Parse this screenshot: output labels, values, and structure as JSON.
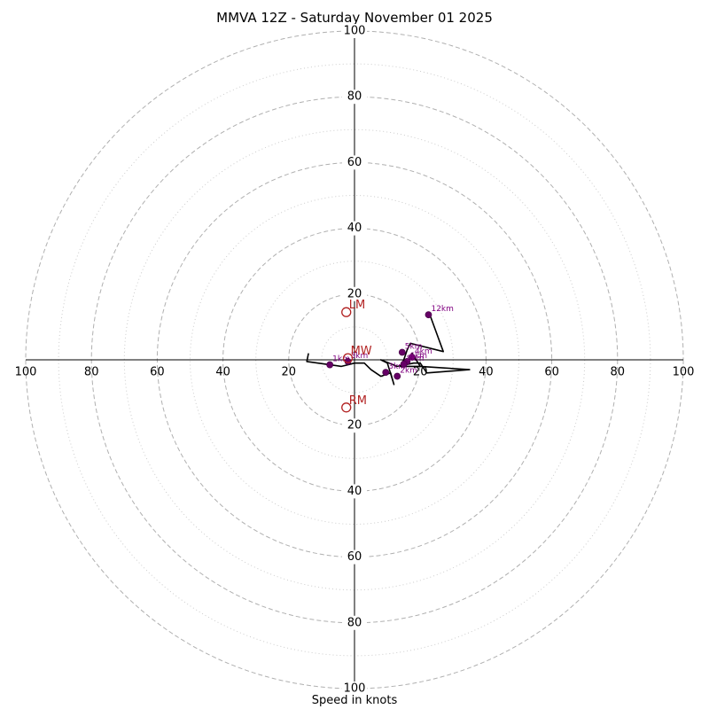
{
  "colors": {
    "background": "#ffffff",
    "axis": "#000000",
    "ring_major": "#b0b0b0",
    "ring_minor": "#cccccc",
    "trace": "#000000",
    "height_marker": "#660066",
    "height_label": "#800080",
    "storm_motion": "#b22222",
    "title": "#000000"
  },
  "chart_data": {
    "type": "hodograph",
    "title": "MMVA 12Z - Saturday November 01 2025",
    "xlabel": "Speed in knots",
    "units": "knots",
    "max_speed": 100,
    "major_rings": [
      20,
      40,
      60,
      80,
      100
    ],
    "minor_rings": [
      10,
      30,
      50,
      70,
      90
    ],
    "tick_labels": [
      "20",
      "40",
      "60",
      "80",
      "100"
    ],
    "trace": {
      "u": [
        -14,
        -14.5,
        -7.5,
        -4,
        -2,
        0,
        3,
        5,
        8,
        11,
        12,
        10,
        8,
        13,
        18,
        20,
        22,
        35,
        20,
        17.5,
        20,
        17,
        14,
        15,
        16,
        17,
        27,
        23
      ],
      "v": [
        2,
        -0.5,
        -1.5,
        -2,
        -1.5,
        -1,
        -1,
        -3,
        -5,
        -4,
        -7.5,
        -1,
        0,
        -2,
        -1,
        -1,
        -4,
        -3,
        -2,
        2,
        -2,
        -2,
        -2,
        0,
        3,
        5,
        2.5,
        13.5
      ]
    },
    "height_markers": [
      {
        "label": "1km",
        "u": -7.5,
        "v": -1.5
      },
      {
        "label": "2km",
        "u": 13,
        "v": -5
      },
      {
        "label": "3km",
        "u": 9.5,
        "v": -3.8
      },
      {
        "label": "4km",
        "u": 17.5,
        "v": 0.8
      },
      {
        "label": "5km",
        "u": 14.5,
        "v": 2.3
      },
      {
        "label": "6km",
        "u": 16,
        "v": -0.5
      },
      {
        "label": "8km",
        "u": 15,
        "v": -1.3
      },
      {
        "label": "12km",
        "u": 22.5,
        "v": 13.7
      },
      {
        "label": "3km",
        "u": -2,
        "v": -0.5
      }
    ],
    "storm_motion": [
      {
        "label": "LM",
        "u": -2.5,
        "v": 14.5
      },
      {
        "label": "RM",
        "u": -2.5,
        "v": -14.5
      },
      {
        "label": "MW",
        "u": -2,
        "v": 0.5
      }
    ]
  }
}
